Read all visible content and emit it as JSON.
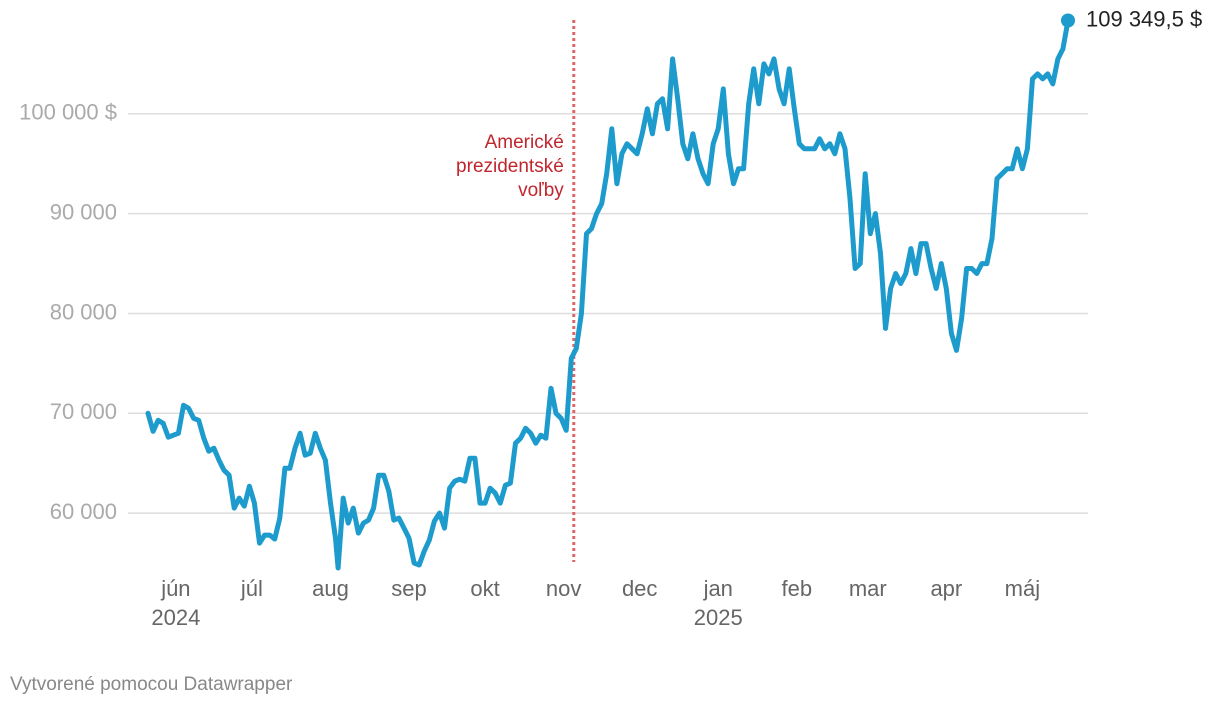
{
  "chart_data": {
    "type": "line",
    "series": [
      {
        "name": null,
        "color": "#1d9bcd",
        "last_label": "109 349,5 $",
        "x": [
          -11,
          -9,
          -7,
          -5,
          -3,
          -1,
          1,
          3,
          5,
          7,
          9,
          11,
          13,
          15,
          17,
          19,
          21,
          23,
          25,
          27,
          29,
          31,
          33,
          35,
          37,
          39,
          41,
          43,
          45,
          47,
          49,
          51,
          53,
          55,
          57,
          59,
          61,
          63,
          64,
          66,
          68,
          70,
          72,
          74,
          76,
          78,
          80,
          82,
          84,
          86,
          88,
          90,
          92,
          94,
          96,
          98,
          100,
          102,
          104,
          106,
          108,
          110,
          112,
          114,
          116,
          118,
          120,
          122,
          124,
          126,
          128,
          130,
          132,
          134,
          136,
          138,
          140,
          142,
          144,
          146,
          148,
          150,
          152,
          154,
          156,
          158,
          160,
          162,
          164,
          166,
          168,
          170,
          172,
          174,
          176,
          178,
          180,
          182,
          184,
          186,
          188,
          190,
          192,
          194,
          196,
          198,
          200,
          202,
          204,
          206,
          208,
          210,
          212,
          214,
          216,
          218,
          220,
          222,
          224,
          226,
          228,
          230,
          232,
          234,
          236,
          238,
          240,
          242,
          244,
          246,
          248,
          250,
          252,
          254,
          256,
          258,
          260,
          262,
          264,
          266,
          268,
          270,
          272,
          274,
          276,
          278,
          280,
          282,
          284,
          286,
          288,
          290,
          292,
          294,
          296,
          298,
          300,
          302,
          304,
          306,
          308,
          310,
          312,
          314,
          316,
          318,
          320,
          322,
          324,
          326,
          328,
          330,
          332,
          334,
          336,
          338,
          340,
          342,
          344,
          346,
          348,
          350,
          352
        ],
        "values": [
          70000,
          68200,
          69300,
          69000,
          67600,
          67800,
          68000,
          70800,
          70500,
          69500,
          69300,
          67500,
          66200,
          66500,
          65300,
          64300,
          63800,
          60500,
          61500,
          60700,
          62700,
          61000,
          57000,
          57800,
          57800,
          57400,
          59500,
          64500,
          64500,
          66500,
          68000,
          65800,
          66000,
          68000,
          66500,
          65300,
          61000,
          57500,
          54500,
          61500,
          59000,
          60500,
          58000,
          59000,
          59300,
          60500,
          63800,
          63800,
          62200,
          59300,
          59500,
          58500,
          57500,
          55000,
          54800,
          56200,
          57300,
          59200,
          60000,
          58500,
          62500,
          63200,
          63400,
          63200,
          65500,
          65500,
          61000,
          61000,
          62500,
          62000,
          61000,
          62800,
          63000,
          67000,
          67500,
          68500,
          68000,
          67000,
          67800,
          67500,
          72500,
          70000,
          69500,
          68300,
          75500,
          76500,
          80000,
          88000,
          88500,
          90000,
          91000,
          94000,
          98500,
          93000,
          96000,
          97000,
          96500,
          96000,
          98000,
          100500,
          98000,
          101000,
          101500,
          98500,
          105500,
          101500,
          97000,
          95500,
          98000,
          95500,
          94000,
          93000,
          97000,
          98500,
          102500,
          96000,
          93000,
          94500,
          94500,
          101000,
          104500,
          101000,
          105000,
          104000,
          105500,
          102500,
          101000,
          104500,
          100500,
          97000,
          96500,
          96500,
          96500,
          97500,
          96500,
          97000,
          96000,
          98000,
          96500,
          91500,
          84500,
          85000,
          94000,
          88000,
          90000,
          86000,
          78500,
          82500,
          84000,
          83000,
          84000,
          86500,
          84000,
          87000,
          87000,
          84500,
          82500,
          85000,
          82500,
          78000,
          76300,
          79500,
          84500,
          84500,
          84000,
          85000,
          85000,
          87500,
          93500,
          94000,
          94500,
          94500,
          96500,
          94500,
          96500,
          103500,
          104000,
          103500,
          104000,
          103000,
          105500,
          106500,
          109349.5
        ]
      }
    ],
    "xlim": [
      -11,
      352
    ],
    "xticks": [
      {
        "value": 0,
        "label": "jún"
      },
      {
        "value": 30,
        "label": "júl"
      },
      {
        "value": 61,
        "label": "aug"
      },
      {
        "value": 92,
        "label": "sep"
      },
      {
        "value": 122,
        "label": "okt"
      },
      {
        "value": 153,
        "label": "nov"
      },
      {
        "value": 183,
        "label": "dec"
      },
      {
        "value": 214,
        "label": "jan"
      },
      {
        "value": 245,
        "label": "feb"
      },
      {
        "value": 273,
        "label": "mar"
      },
      {
        "value": 304,
        "label": "apr"
      },
      {
        "value": 334,
        "label": "máj"
      }
    ],
    "x_year_labels": [
      {
        "value": 0,
        "label": "2024"
      },
      {
        "value": 214,
        "label": "2025"
      }
    ],
    "ylim": [
      54000,
      110000
    ],
    "yticks": [
      {
        "value": 60000,
        "label": "60 000"
      },
      {
        "value": 70000,
        "label": "70 000"
      },
      {
        "value": 80000,
        "label": "80 000"
      },
      {
        "value": 90000,
        "label": "90 000"
      },
      {
        "value": 100000,
        "label": "100 000 $"
      }
    ],
    "grid": true,
    "event": {
      "x": 157,
      "lines": [
        "Americké",
        "prezidentské",
        "voľby"
      ],
      "color": "#e06666",
      "text_color": "#c0262d"
    },
    "footer": "Vytvorené pomocou Datawrapper"
  }
}
